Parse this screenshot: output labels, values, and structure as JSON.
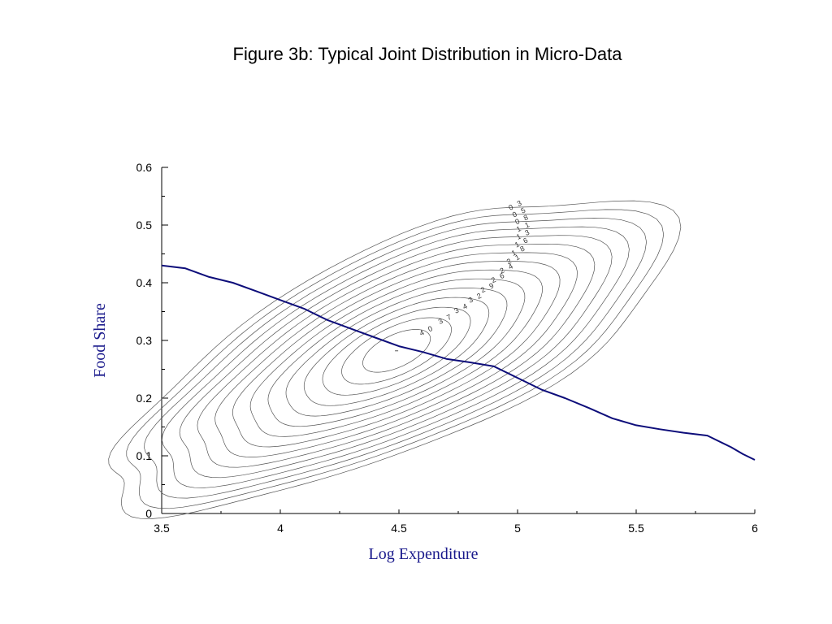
{
  "chart_data": {
    "type": "contour",
    "title": "Figure 3b: Typical Joint Distribution in Micro-Data",
    "xlabel": "Log Expenditure",
    "ylabel": "Food Share",
    "xlim": [
      3.5,
      6
    ],
    "ylim": [
      0,
      0.6
    ],
    "x_ticks": [
      "3.5",
      "4",
      "4.5",
      "5",
      "5.5",
      "6"
    ],
    "y_ticks": [
      "0",
      "0.1",
      "0.2",
      "0.3",
      "0.4",
      "0.5",
      "0.6"
    ],
    "grid": false,
    "density_peak": {
      "x": 4.49,
      "y": 0.282
    },
    "contour_levels": [
      "0 3",
      "0 5",
      "0 8",
      "1 1",
      "1 3",
      "1 6",
      "1 8",
      "2 1",
      "2 4",
      "2 6",
      "2 9",
      "3 2",
      "3 4",
      "3 7",
      "4 0"
    ],
    "regression_line": {
      "x": [
        3.5,
        3.6,
        3.7,
        3.8,
        3.9,
        4.0,
        4.1,
        4.2,
        4.3,
        4.4,
        4.5,
        4.6,
        4.7,
        4.8,
        4.9,
        5.0,
        5.1,
        5.2,
        5.3,
        5.4,
        5.5,
        5.6,
        5.7,
        5.8,
        5.9,
        5.95,
        6.0
      ],
      "y": [
        0.43,
        0.425,
        0.41,
        0.4,
        0.385,
        0.37,
        0.355,
        0.335,
        0.32,
        0.305,
        0.29,
        0.28,
        0.268,
        0.262,
        0.255,
        0.235,
        0.215,
        0.2,
        0.183,
        0.165,
        0.153,
        0.146,
        0.14,
        0.135,
        0.115,
        0.103,
        0.093
      ]
    },
    "line_color": "#0d0d7a",
    "axis_title_color": "#1a1a8c"
  }
}
